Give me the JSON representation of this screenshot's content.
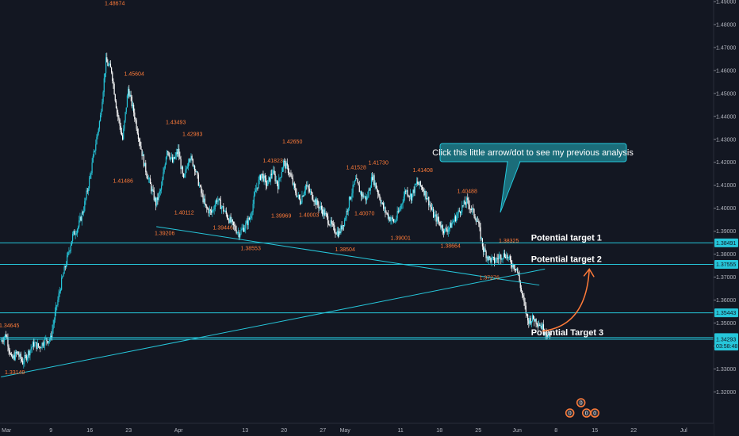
{
  "chart_data": {
    "type": "candlestick",
    "title": "",
    "xlabel": "",
    "ylabel": "",
    "ylim": [
      1.31633,
      1.49
    ],
    "grid": false,
    "colors": {
      "background": "#131722",
      "bull": "#26c6da",
      "bear": "#ffffff",
      "level_line": "#26c6da",
      "annotation_text": "#ff7b39",
      "axis_text": "#b2b5be",
      "target_text": "#ffffff"
    },
    "x_ticks": [
      "Mar",
      "9",
      "16",
      "23",
      "Apr",
      "13",
      "20",
      "27",
      "May",
      "11",
      "18",
      "25",
      "Jun",
      "8",
      "15",
      "22",
      "Jul"
    ],
    "x_tick_days": [
      0,
      8,
      15,
      22,
      31,
      43,
      50,
      57,
      61,
      71,
      78,
      85,
      92,
      99,
      106,
      113,
      122
    ],
    "y_ticks": [
      "1.49000",
      "1.48000",
      "1.47000",
      "1.46000",
      "1.45000",
      "1.44000",
      "1.43000",
      "1.42000",
      "1.41000",
      "1.40000",
      "1.39000",
      "1.38000",
      "1.37000",
      "1.36000",
      "1.35000",
      "1.34000",
      "1.33000",
      "1.32000"
    ],
    "price_badges": [
      {
        "text": "1.38491",
        "value": 1.38491
      },
      {
        "text": "1.37555",
        "value": 1.37555
      },
      {
        "text": "1.35443",
        "value": 1.35443
      },
      {
        "text": "1.34364",
        "value": 1.34364
      },
      {
        "text": "1.34293",
        "value": 1.34293
      },
      {
        "text": "03:58:48",
        "value": 1.33993
      }
    ],
    "horizontal_levels": [
      1.38491,
      1.37555,
      1.35443,
      1.34364,
      1.34293
    ],
    "trendlines": [
      {
        "from": {
          "day": 27,
          "price": 1.392
        },
        "to": {
          "day": 96,
          "price": 1.3665
        }
      },
      {
        "from": {
          "day": -1,
          "price": 1.3265
        },
        "to": {
          "day": 97,
          "price": 1.3735
        }
      }
    ],
    "annotations": [
      {
        "text": "1.48674",
        "day": 19.5,
        "price": 1.48674,
        "pos": "above"
      },
      {
        "text": "1.45604",
        "day": 23.0,
        "price": 1.45604,
        "pos": "above"
      },
      {
        "text": "1.41486",
        "day": 21.0,
        "price": 1.41486,
        "pos": "below"
      },
      {
        "text": "1.43493",
        "day": 30.5,
        "price": 1.43493,
        "pos": "above"
      },
      {
        "text": "1.42983",
        "day": 33.5,
        "price": 1.42983,
        "pos": "above"
      },
      {
        "text": "1.40112",
        "day": 32.0,
        "price": 1.40112,
        "pos": "below"
      },
      {
        "text": "1.39206",
        "day": 28.5,
        "price": 1.39206,
        "pos": "below"
      },
      {
        "text": "1.39446",
        "day": 39.0,
        "price": 1.39446,
        "pos": "below"
      },
      {
        "text": "1.38553",
        "day": 44.0,
        "price": 1.38553,
        "pos": "below"
      },
      {
        "text": "1.41823",
        "day": 48.0,
        "price": 1.41823,
        "pos": "above"
      },
      {
        "text": "1.42650",
        "day": 51.5,
        "price": 1.4265,
        "pos": "above"
      },
      {
        "text": "1.39969",
        "day": 49.5,
        "price": 1.39969,
        "pos": "below"
      },
      {
        "text": "1.40003",
        "day": 54.5,
        "price": 1.40003,
        "pos": "below"
      },
      {
        "text": "1.41528",
        "day": 63.0,
        "price": 1.41528,
        "pos": "above"
      },
      {
        "text": "1.41730",
        "day": 67.0,
        "price": 1.4173,
        "pos": "above"
      },
      {
        "text": "1.40070",
        "day": 64.5,
        "price": 1.4007,
        "pos": "below"
      },
      {
        "text": "1.38504",
        "day": 61.0,
        "price": 1.38504,
        "pos": "below"
      },
      {
        "text": "1.39001",
        "day": 71.0,
        "price": 1.39001,
        "pos": "below"
      },
      {
        "text": "1.41408",
        "day": 75.0,
        "price": 1.41408,
        "pos": "above"
      },
      {
        "text": "1.40488",
        "day": 83.0,
        "price": 1.40488,
        "pos": "above"
      },
      {
        "text": "1.38664",
        "day": 80.0,
        "price": 1.38664,
        "pos": "below"
      },
      {
        "text": "1.38325",
        "day": 90.5,
        "price": 1.38325,
        "pos": "above"
      },
      {
        "text": "1.37276",
        "day": 87.0,
        "price": 1.37276,
        "pos": "below"
      },
      {
        "text": "1.34645",
        "day": 0.5,
        "price": 1.34645,
        "pos": "above"
      },
      {
        "text": "1.33149",
        "day": 1.5,
        "price": 1.33149,
        "pos": "below"
      }
    ],
    "targets": [
      {
        "text": "Potential target 1",
        "day": 94.5,
        "price": 1.38491
      },
      {
        "text": "Potential target 2",
        "day": 94.5,
        "price": 1.37555
      },
      {
        "text": "Potential Target 3",
        "day": 94.5,
        "price": 1.34364
      }
    ],
    "callout": {
      "text": "Click this little arrow/dot to see my previous analysis"
    },
    "projection_arrow": {
      "from": {
        "day": 96.5,
        "price": 1.3465
      },
      "to": {
        "day": 105,
        "price": 1.3735
      }
    },
    "events": [
      {
        "text": "0",
        "day": 103.5
      },
      {
        "text": "0",
        "day": 101.5
      },
      {
        "text": "0",
        "day": 104.5
      },
      {
        "text": "0",
        "day": 106.0
      }
    ],
    "series": [
      {
        "points": [
          [
            -1,
            1.342
          ],
          [
            0,
            1.345
          ],
          [
            1,
            1.334
          ],
          [
            2,
            1.337
          ],
          [
            3,
            1.333
          ],
          [
            4,
            1.337
          ],
          [
            5,
            1.341
          ],
          [
            6,
            1.3395
          ],
          [
            7,
            1.3425
          ],
          [
            8,
            1.343
          ],
          [
            9,
            1.356
          ],
          [
            10,
            1.368
          ],
          [
            11,
            1.378
          ],
          [
            12,
            1.388
          ],
          [
            13,
            1.392
          ],
          [
            14,
            1.4
          ],
          [
            15,
            1.412
          ],
          [
            16,
            1.426
          ],
          [
            17,
            1.44
          ],
          [
            18,
            1.464
          ],
          [
            19,
            1.46
          ],
          [
            20,
            1.442
          ],
          [
            21,
            1.43
          ],
          [
            22,
            1.452
          ],
          [
            23,
            1.442
          ],
          [
            24,
            1.43
          ],
          [
            25,
            1.418
          ],
          [
            26,
            1.41
          ],
          [
            27,
            1.402
          ],
          [
            28,
            1.409
          ],
          [
            29,
            1.426
          ],
          [
            30,
            1.42
          ],
          [
            31,
            1.425
          ],
          [
            32,
            1.412
          ],
          [
            33,
            1.423
          ],
          [
            34,
            1.418
          ],
          [
            35,
            1.408
          ],
          [
            36,
            1.4
          ],
          [
            37,
            1.398
          ],
          [
            38,
            1.404
          ],
          [
            39,
            1.4
          ],
          [
            40,
            1.396
          ],
          [
            41,
            1.392
          ],
          [
            42,
            1.389
          ],
          [
            43,
            1.392
          ],
          [
            44,
            1.396
          ],
          [
            45,
            1.408
          ],
          [
            46,
            1.415
          ],
          [
            47,
            1.41
          ],
          [
            48,
            1.416
          ],
          [
            49,
            1.41
          ],
          [
            50,
            1.42
          ],
          [
            51,
            1.416
          ],
          [
            52,
            1.408
          ],
          [
            53,
            1.403
          ],
          [
            54,
            1.41
          ],
          [
            55,
            1.406
          ],
          [
            56,
            1.402
          ],
          [
            57,
            1.399
          ],
          [
            58,
            1.395
          ],
          [
            59,
            1.391
          ],
          [
            60,
            1.389
          ],
          [
            61,
            1.395
          ],
          [
            62,
            1.405
          ],
          [
            63,
            1.412
          ],
          [
            64,
            1.406
          ],
          [
            65,
            1.404
          ],
          [
            66,
            1.414
          ],
          [
            67,
            1.407
          ],
          [
            68,
            1.4
          ],
          [
            69,
            1.396
          ],
          [
            70,
            1.394
          ],
          [
            71,
            1.4
          ],
          [
            72,
            1.408
          ],
          [
            73,
            1.405
          ],
          [
            74,
            1.411
          ],
          [
            75,
            1.409
          ],
          [
            76,
            1.404
          ],
          [
            77,
            1.397
          ],
          [
            78,
            1.394
          ],
          [
            79,
            1.39
          ],
          [
            80,
            1.392
          ],
          [
            81,
            1.396
          ],
          [
            82,
            1.4
          ],
          [
            83,
            1.403
          ],
          [
            84,
            1.399
          ],
          [
            85,
            1.394
          ],
          [
            86,
            1.382
          ],
          [
            87,
            1.378
          ],
          [
            88,
            1.377
          ],
          [
            89,
            1.379
          ],
          [
            90,
            1.38
          ],
          [
            91,
            1.376
          ],
          [
            92,
            1.374
          ],
          [
            93,
            1.362
          ],
          [
            94,
            1.351
          ],
          [
            95,
            1.352
          ],
          [
            96,
            1.35
          ],
          [
            97,
            1.347
          ],
          [
            98,
            1.3432
          ]
        ]
      }
    ]
  }
}
